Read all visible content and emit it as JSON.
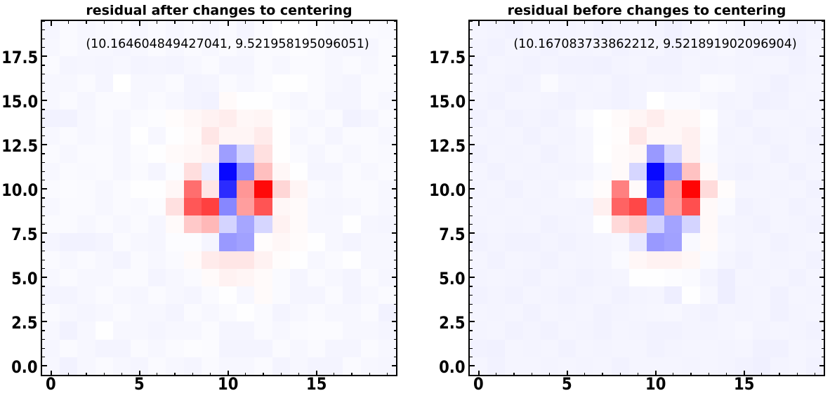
{
  "figure": {
    "background": "#ffffff",
    "text_color": "#000000",
    "annotation_color": "#000000"
  },
  "chart_data": [
    {
      "type": "heatmap",
      "title": "residual after changes to centering",
      "annotation": "(10.164604849427041, 9.521958195096051)",
      "colormap": "bwr",
      "vmin": -1,
      "vmax": 1,
      "origin": "lower",
      "x_range": [
        -0.5,
        19.5
      ],
      "y_range": [
        -0.5,
        19.5
      ],
      "x_tick_values": [
        0,
        5,
        10,
        15
      ],
      "x_tick_labels": [
        "0",
        "5",
        "10",
        "15"
      ],
      "y_tick_values": [
        0,
        2.5,
        5,
        7.5,
        10,
        12.5,
        15,
        17.5
      ],
      "y_tick_labels": [
        "0.0",
        "2.5",
        "5.0",
        "7.5",
        "10.0",
        "12.5",
        "15.0",
        "17.5"
      ],
      "x_minor_step": 1,
      "y_minor_step": 0.5,
      "values": [
        [
          -0.03,
          -0.05,
          -0.03,
          -0.02,
          -0.03,
          -0.04,
          -0.02,
          -0.03,
          -0.04,
          -0.02,
          -0.03,
          -0.03,
          -0.02,
          -0.045,
          -0.03,
          -0.045,
          -0.045,
          -0.02,
          -0.03,
          -0.035
        ],
        [
          -0.035,
          -0.02,
          -0.03,
          -0.045,
          -0.045,
          -0.02,
          -0.03,
          -0.02,
          -0.01,
          -0.015,
          -0.045,
          -0.045,
          -0.045,
          -0.02,
          -0.03,
          -0.02,
          -0.04,
          -0.04,
          -0.02,
          -0.03
        ],
        [
          -0.03,
          -0.05,
          -0.03,
          -0.005,
          -0.03,
          -0.03,
          -0.04,
          -0.03,
          -0.03,
          -0.015,
          -0.04,
          -0.04,
          -0.02,
          -0.03,
          -0.02,
          -0.015,
          -0.015,
          -0.03,
          -0.03,
          -0.04
        ],
        [
          -0.02,
          -0.03,
          -0.04,
          -0.03,
          -0.02,
          -0.03,
          -0.03,
          -0.045,
          -0.02,
          -0.03,
          -0.02,
          -0.005,
          -0.02,
          -0.045,
          -0.03,
          -0.02,
          -0.03,
          -0.03,
          -0.02,
          -0.05
        ],
        [
          -0.045,
          -0.045,
          -0.03,
          -0.02,
          -0.03,
          -0.035,
          -0.02,
          -0.03,
          -0.04,
          -0.02,
          -0.005,
          -0.03,
          0.02,
          -0.02,
          -0.04,
          -0.04,
          -0.02,
          -0.045,
          -0.03,
          -0.02
        ],
        [
          -0.03,
          -0.02,
          -0.03,
          -0.03,
          -0.02,
          -0.02,
          -0.045,
          -0.03,
          -0.02,
          0.02,
          0.05,
          0.04,
          0.02,
          -0.02,
          -0.04,
          -0.02,
          -0.03,
          -0.045,
          -0.02,
          -0.035
        ],
        [
          -0.02,
          -0.03,
          -0.02,
          -0.03,
          -0.045,
          -0.02,
          -0.03,
          -0.02,
          0.02,
          0.08,
          0.1,
          0.1,
          0.05,
          0.01,
          -0.005,
          -0.03,
          -0.02,
          -0.005,
          -0.03,
          -0.03
        ],
        [
          -0.04,
          -0.05,
          -0.05,
          -0.045,
          -0.02,
          -0.03,
          -0.035,
          -0.01,
          -0.01,
          -0.04,
          -0.4,
          -0.37,
          0.01,
          0.03,
          0.015,
          -0.005,
          -0.03,
          -0.045,
          -0.03,
          -0.03
        ],
        [
          -0.02,
          -0.02,
          -0.03,
          -0.02,
          -0.03,
          -0.02,
          -0.035,
          0.02,
          0.21,
          0.28,
          -0.17,
          -0.35,
          -0.16,
          0.05,
          0.02,
          -0.03,
          -0.03,
          -0.005,
          -0.035,
          -0.04
        ],
        [
          -0.03,
          -0.02,
          -0.02,
          -0.03,
          -0.02,
          -0.025,
          -0.01,
          0.12,
          0.66,
          0.75,
          -0.47,
          0.38,
          0.67,
          0.03,
          0.02,
          -0.03,
          -0.035,
          -0.03,
          -0.02,
          -0.03
        ],
        [
          -0.02,
          -0.015,
          -0.02,
          -0.03,
          -0.02,
          -0.005,
          -0.005,
          0.03,
          0.57,
          0.1,
          -0.83,
          0.41,
          0.96,
          0.16,
          0.04,
          -0.02,
          -0.03,
          -0.02,
          -0.02,
          -0.03
        ],
        [
          -0.03,
          -0.02,
          -0.025,
          -0.02,
          -0.03,
          -0.02,
          -0.04,
          -0.01,
          0.13,
          -0.08,
          -0.97,
          -0.45,
          0.25,
          0.03,
          -0.005,
          -0.04,
          -0.04,
          -0.02,
          -0.03,
          -0.02
        ],
        [
          -0.02,
          -0.03,
          -0.02,
          -0.02,
          -0.03,
          -0.015,
          -0.005,
          0.02,
          0.03,
          0.05,
          -0.38,
          -0.17,
          0.12,
          0.005,
          -0.02,
          -0.035,
          -0.02,
          -0.03,
          -0.02,
          -0.025
        ],
        [
          -0.03,
          -0.02,
          -0.03,
          -0.025,
          -0.03,
          -0.005,
          -0.03,
          -0.005,
          0.02,
          0.1,
          0.04,
          0.04,
          0.08,
          0.005,
          -0.03,
          -0.02,
          -0.04,
          -0.02,
          -0.02,
          -0.03
        ],
        [
          -0.05,
          -0.05,
          -0.03,
          -0.02,
          -0.03,
          -0.02,
          -0.01,
          0.01,
          0.03,
          0.05,
          0.07,
          0.03,
          0.04,
          0.005,
          -0.02,
          -0.03,
          -0.02,
          -0.05,
          -0.04,
          -0.02
        ],
        [
          -0.03,
          -0.02,
          -0.035,
          -0.02,
          -0.02,
          -0.03,
          -0.02,
          -0.03,
          -0.045,
          -0.05,
          0.02,
          -0.005,
          -0.005,
          -0.02,
          -0.03,
          -0.02,
          -0.04,
          -0.04,
          -0.02,
          -0.03
        ],
        [
          -0.03,
          -0.03,
          -0.02,
          -0.04,
          0.0,
          -0.03,
          -0.03,
          -0.02,
          -0.045,
          -0.04,
          -0.02,
          -0.03,
          -0.02,
          -0.005,
          -0.005,
          -0.02,
          -0.03,
          -0.04,
          -0.02,
          -0.02
        ],
        [
          -0.02,
          -0.04,
          -0.035,
          -0.04,
          -0.03,
          -0.045,
          -0.04,
          -0.045,
          -0.03,
          -0.02,
          -0.04,
          -0.04,
          -0.02,
          -0.03,
          -0.02,
          -0.02,
          -0.03,
          -0.02,
          -0.03,
          -0.02
        ],
        [
          -0.03,
          -0.02,
          -0.03,
          -0.03,
          -0.04,
          -0.03,
          -0.02,
          -0.03,
          -0.02,
          -0.03,
          -0.02,
          -0.03,
          -0.02,
          -0.02,
          -0.01,
          -0.02,
          -0.03,
          -0.035,
          -0.035,
          -0.02
        ],
        [
          -0.035,
          -0.02,
          -0.03,
          -0.025,
          -0.015,
          -0.03,
          -0.02,
          -0.03,
          -0.025,
          -0.03,
          -0.02,
          -0.04,
          -0.02,
          0.0,
          -0.005,
          -0.01,
          -0.02,
          -0.025,
          -0.02,
          -0.025
        ]
      ]
    },
    {
      "type": "heatmap",
      "title": "residual before changes to centering",
      "annotation": "(10.167083733862212, 9.521891902096904)",
      "colormap": "bwr",
      "vmin": -1,
      "vmax": 1,
      "origin": "lower",
      "x_range": [
        -0.5,
        19.5
      ],
      "y_range": [
        -0.5,
        19.5
      ],
      "x_tick_values": [
        0,
        5,
        10,
        15
      ],
      "x_tick_labels": [
        "0",
        "5",
        "10",
        "15"
      ],
      "y_tick_values": [
        0,
        2.5,
        5,
        7.5,
        10,
        12.5,
        15,
        17.5
      ],
      "y_tick_labels": [
        "0.0",
        "2.5",
        "5.0",
        "7.5",
        "10.0",
        "12.5",
        "15.0",
        "17.5"
      ],
      "x_minor_step": 1,
      "y_minor_step": 0.5,
      "values": [
        [
          -0.04,
          -0.05,
          -0.04,
          -0.04,
          -0.045,
          -0.04,
          -0.045,
          -0.04,
          -0.05,
          -0.04,
          -0.04,
          -0.04,
          -0.045,
          -0.04,
          -0.045,
          -0.05,
          -0.06,
          -0.045,
          -0.04,
          -0.05
        ],
        [
          -0.05,
          -0.055,
          -0.04,
          -0.045,
          -0.04,
          -0.05,
          -0.04,
          -0.045,
          -0.04,
          -0.04,
          -0.05,
          -0.045,
          -0.04,
          -0.04,
          -0.045,
          -0.04,
          -0.055,
          -0.055,
          -0.04,
          -0.045
        ],
        [
          -0.045,
          -0.04,
          -0.05,
          -0.045,
          -0.05,
          -0.04,
          -0.045,
          -0.05,
          -0.04,
          -0.045,
          -0.05,
          -0.05,
          -0.045,
          -0.045,
          -0.04,
          -0.03,
          -0.045,
          -0.04,
          -0.045,
          -0.05
        ],
        [
          -0.04,
          -0.045,
          -0.04,
          -0.05,
          -0.04,
          -0.045,
          -0.04,
          -0.05,
          -0.045,
          -0.04,
          -0.035,
          -0.03,
          -0.045,
          -0.05,
          -0.04,
          -0.045,
          -0.04,
          -0.055,
          -0.045,
          -0.04
        ],
        [
          -0.05,
          -0.045,
          -0.05,
          -0.04,
          -0.045,
          -0.05,
          -0.045,
          -0.04,
          -0.05,
          -0.045,
          -0.04,
          -0.065,
          -0.005,
          -0.03,
          -0.065,
          -0.045,
          -0.04,
          -0.055,
          -0.04,
          -0.045
        ],
        [
          -0.045,
          -0.04,
          -0.045,
          -0.05,
          -0.04,
          -0.045,
          -0.05,
          -0.045,
          -0.04,
          -0.005,
          -0.005,
          -0.01,
          -0.02,
          -0.045,
          -0.065,
          -0.04,
          -0.045,
          -0.04,
          -0.05,
          -0.04
        ],
        [
          -0.04,
          -0.05,
          -0.04,
          -0.045,
          -0.05,
          -0.04,
          -0.045,
          -0.04,
          -0.02,
          0.03,
          0.05,
          0.05,
          0.03,
          -0.02,
          -0.04,
          -0.05,
          -0.04,
          -0.045,
          -0.04,
          -0.05
        ],
        [
          -0.05,
          -0.045,
          -0.05,
          -0.05,
          -0.045,
          -0.05,
          -0.045,
          -0.04,
          -0.03,
          -0.09,
          -0.4,
          -0.37,
          -0.025,
          0.02,
          -0.03,
          -0.045,
          -0.04,
          -0.05,
          -0.045,
          -0.04
        ],
        [
          -0.045,
          -0.04,
          -0.045,
          -0.04,
          -0.05,
          -0.045,
          -0.04,
          -0.005,
          0.15,
          0.22,
          -0.18,
          -0.36,
          -0.17,
          0.025,
          -0.04,
          -0.045,
          -0.05,
          -0.04,
          -0.045,
          -0.05
        ],
        [
          -0.04,
          -0.045,
          -0.04,
          -0.045,
          -0.04,
          -0.04,
          -0.045,
          0.06,
          0.61,
          0.72,
          -0.46,
          0.38,
          0.69,
          0.025,
          -0.02,
          -0.05,
          -0.045,
          -0.04,
          -0.05,
          -0.045
        ],
        [
          -0.045,
          -0.04,
          -0.05,
          -0.04,
          -0.045,
          -0.03,
          -0.02,
          0.01,
          0.5,
          0.02,
          -0.82,
          0.4,
          0.98,
          0.14,
          0.01,
          -0.04,
          -0.04,
          -0.045,
          -0.04,
          -0.05
        ],
        [
          -0.04,
          -0.05,
          -0.04,
          -0.045,
          -0.04,
          -0.045,
          -0.04,
          -0.02,
          0.02,
          -0.16,
          -0.97,
          -0.46,
          0.24,
          0.02,
          -0.045,
          -0.05,
          -0.045,
          -0.04,
          -0.05,
          -0.04
        ],
        [
          -0.05,
          -0.04,
          -0.045,
          -0.04,
          -0.05,
          -0.04,
          -0.03,
          0.0,
          0.02,
          0.03,
          -0.4,
          -0.16,
          0.06,
          -0.02,
          -0.04,
          -0.045,
          -0.04,
          -0.05,
          -0.04,
          -0.045
        ],
        [
          -0.04,
          -0.045,
          -0.04,
          -0.05,
          -0.04,
          -0.045,
          -0.03,
          -0.005,
          0.01,
          0.09,
          0.03,
          0.03,
          0.06,
          -0.01,
          -0.045,
          -0.04,
          -0.05,
          -0.045,
          -0.04,
          -0.05
        ],
        [
          -0.05,
          -0.04,
          -0.05,
          -0.045,
          -0.05,
          -0.04,
          -0.02,
          0.0,
          0.02,
          0.04,
          0.07,
          0.03,
          0.03,
          -0.005,
          -0.04,
          -0.05,
          -0.04,
          -0.04,
          -0.045,
          -0.04
        ],
        [
          -0.045,
          -0.05,
          -0.04,
          -0.04,
          -0.045,
          -0.05,
          -0.04,
          -0.045,
          -0.05,
          -0.045,
          0.0,
          -0.02,
          -0.02,
          -0.03,
          -0.045,
          -0.04,
          -0.055,
          -0.05,
          -0.04,
          -0.045
        ],
        [
          -0.04,
          -0.045,
          -0.05,
          -0.045,
          -0.02,
          -0.04,
          -0.045,
          -0.04,
          -0.05,
          -0.045,
          -0.04,
          -0.045,
          -0.04,
          -0.02,
          -0.025,
          -0.04,
          -0.045,
          -0.055,
          -0.045,
          -0.04
        ],
        [
          -0.05,
          -0.04,
          -0.045,
          -0.05,
          -0.045,
          -0.05,
          -0.05,
          -0.055,
          -0.045,
          -0.04,
          -0.05,
          -0.05,
          -0.04,
          -0.045,
          -0.04,
          -0.045,
          -0.04,
          -0.04,
          -0.05,
          -0.045
        ],
        [
          -0.045,
          -0.05,
          -0.04,
          -0.045,
          -0.05,
          -0.04,
          -0.045,
          -0.04,
          -0.05,
          -0.045,
          -0.04,
          -0.05,
          -0.045,
          -0.04,
          -0.03,
          -0.045,
          -0.05,
          -0.05,
          -0.055,
          -0.04
        ],
        [
          -0.04,
          -0.045,
          -0.05,
          -0.04,
          -0.04,
          -0.045,
          -0.04,
          -0.05,
          -0.045,
          -0.04,
          -0.045,
          -0.055,
          -0.04,
          -0.02,
          -0.03,
          -0.04,
          -0.045,
          -0.04,
          -0.05,
          -0.045
        ]
      ]
    }
  ]
}
